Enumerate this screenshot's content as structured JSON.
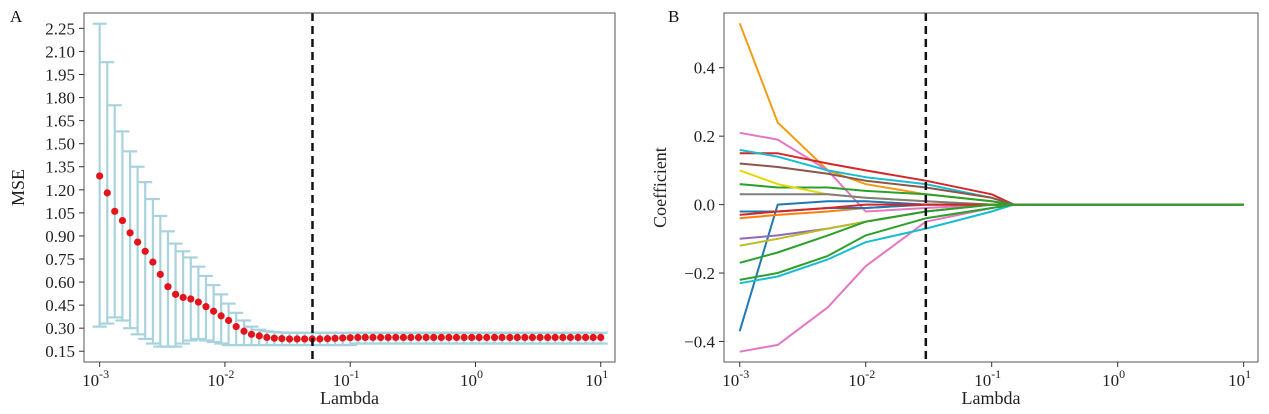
{
  "chart_data": [
    {
      "panel_label": "A",
      "type": "scatter",
      "xlabel": "Lambda",
      "ylabel": "MSE",
      "x_scale": "log",
      "xlim": [
        0.00075,
        13
      ],
      "ylim": [
        0.08,
        2.35
      ],
      "x_ticks": [
        0.001,
        0.01,
        0.1,
        1,
        10
      ],
      "x_tick_labels": [
        [
          "10",
          "-3"
        ],
        [
          "10",
          "-2"
        ],
        [
          "10",
          "-1"
        ],
        [
          "10",
          "0"
        ],
        [
          "10",
          "1"
        ]
      ],
      "y_ticks": [
        0.15,
        0.3,
        0.45,
        0.6,
        0.75,
        0.9,
        1.05,
        1.2,
        1.35,
        1.5,
        1.65,
        1.8,
        1.95,
        2.1,
        2.25
      ],
      "y_tick_labels": [
        "0.15",
        "0.30",
        "0.45",
        "0.60",
        "0.75",
        "0.90",
        "1.05",
        "1.20",
        "1.35",
        "1.50",
        "1.65",
        "1.80",
        "1.95",
        "2.10",
        "2.25"
      ],
      "vline_x": 0.05,
      "point_color": "#e3141c",
      "errorbar_color": "#a9d3dc",
      "series": [
        {
          "lambda": [
            0.001,
            0.00115,
            0.00132,
            0.00152,
            0.00175,
            0.00201,
            0.00231,
            0.00266,
            0.00305,
            0.00351,
            0.00404,
            0.00464,
            0.00534,
            0.00614,
            0.00706,
            0.00812,
            0.00933,
            0.0107,
            0.0123,
            0.0142,
            0.0163,
            0.0188,
            0.0216,
            0.0248,
            0.0285,
            0.0328,
            0.0377,
            0.0433,
            0.0498,
            0.0573,
            0.0659,
            0.0757,
            0.0871,
            0.1,
            0.115,
            0.132,
            0.152,
            0.175,
            0.201,
            0.231,
            0.266,
            0.305,
            0.351,
            0.404,
            0.464,
            0.534,
            0.614,
            0.706,
            0.812,
            0.933,
            1.07,
            1.23,
            1.42,
            1.63,
            1.88,
            2.16,
            2.48,
            2.85,
            3.28,
            3.77,
            4.33,
            4.98,
            5.73,
            6.59,
            7.57,
            8.71,
            10
          ],
          "mse": [
            1.29,
            1.18,
            1.06,
            1.0,
            0.92,
            0.86,
            0.8,
            0.73,
            0.65,
            0.57,
            0.52,
            0.5,
            0.49,
            0.47,
            0.44,
            0.41,
            0.38,
            0.35,
            0.31,
            0.28,
            0.26,
            0.25,
            0.24,
            0.235,
            0.232,
            0.23,
            0.23,
            0.23,
            0.23,
            0.23,
            0.232,
            0.234,
            0.236,
            0.238,
            0.24,
            0.24,
            0.24,
            0.24,
            0.24,
            0.24,
            0.24,
            0.24,
            0.24,
            0.24,
            0.24,
            0.24,
            0.24,
            0.24,
            0.24,
            0.24,
            0.24,
            0.24,
            0.24,
            0.24,
            0.24,
            0.24,
            0.24,
            0.24,
            0.24,
            0.24,
            0.24,
            0.24,
            0.24,
            0.24,
            0.24,
            0.24,
            0.24
          ],
          "upper": [
            2.28,
            2.03,
            1.75,
            1.58,
            1.45,
            1.35,
            1.25,
            1.14,
            1.03,
            0.93,
            0.85,
            0.8,
            0.76,
            0.7,
            0.64,
            0.58,
            0.52,
            0.46,
            0.4,
            0.35,
            0.31,
            0.29,
            0.28,
            0.275,
            0.272,
            0.27,
            0.27,
            0.27,
            0.27,
            0.27,
            0.27,
            0.27,
            0.27,
            0.27,
            0.27,
            0.27,
            0.27,
            0.27,
            0.27,
            0.27,
            0.27,
            0.27,
            0.27,
            0.27,
            0.27,
            0.27,
            0.27,
            0.27,
            0.27,
            0.27,
            0.27,
            0.27,
            0.27,
            0.27,
            0.27,
            0.27,
            0.27,
            0.27,
            0.27,
            0.27,
            0.27,
            0.27,
            0.27,
            0.27,
            0.27,
            0.27,
            0.27
          ],
          "lower": [
            0.31,
            0.33,
            0.37,
            0.35,
            0.3,
            0.26,
            0.23,
            0.2,
            0.18,
            0.18,
            0.18,
            0.2,
            0.22,
            0.23,
            0.22,
            0.21,
            0.2,
            0.19,
            0.19,
            0.19,
            0.19,
            0.19,
            0.19,
            0.19,
            0.19,
            0.19,
            0.19,
            0.19,
            0.19,
            0.19,
            0.19,
            0.19,
            0.19,
            0.19,
            0.2,
            0.2,
            0.2,
            0.2,
            0.2,
            0.2,
            0.2,
            0.2,
            0.2,
            0.2,
            0.2,
            0.2,
            0.2,
            0.2,
            0.2,
            0.2,
            0.2,
            0.2,
            0.2,
            0.2,
            0.2,
            0.2,
            0.2,
            0.2,
            0.2,
            0.2,
            0.2,
            0.2,
            0.2,
            0.2,
            0.2,
            0.2,
            0.2
          ]
        }
      ]
    },
    {
      "panel_label": "B",
      "type": "line",
      "xlabel": "Lambda",
      "ylabel": "Coefficient",
      "x_scale": "log",
      "xlim": [
        0.00075,
        13
      ],
      "ylim": [
        -0.46,
        0.56
      ],
      "x_ticks": [
        0.001,
        0.01,
        0.1,
        1,
        10
      ],
      "x_tick_labels": [
        [
          "10",
          "-3"
        ],
        [
          "10",
          "-2"
        ],
        [
          "10",
          "-1"
        ],
        [
          "10",
          "0"
        ],
        [
          "10",
          "1"
        ]
      ],
      "y_ticks": [
        -0.4,
        -0.2,
        0.0,
        0.2,
        0.4
      ],
      "y_tick_labels": [
        "−0.4",
        "−0.2",
        "0.0",
        "0.2",
        "0.4"
      ],
      "vline_x": 0.03,
      "x_knots": [
        0.001,
        0.002,
        0.005,
        0.01,
        0.03,
        0.1,
        0.15,
        10
      ],
      "series": [
        {
          "color": "#f39c12",
          "values": [
            0.53,
            0.24,
            0.1,
            0.06,
            0.03,
            0.01,
            0,
            0
          ]
        },
        {
          "color": "#e377c2",
          "values": [
            0.21,
            0.19,
            0.1,
            -0.02,
            -0.01,
            0,
            0,
            0
          ]
        },
        {
          "color": "#e377c2",
          "values": [
            -0.43,
            -0.41,
            -0.3,
            -0.18,
            -0.05,
            -0.01,
            0,
            0
          ]
        },
        {
          "color": "#d62728",
          "values": [
            0.15,
            0.15,
            0.12,
            0.1,
            0.07,
            0.03,
            0,
            0
          ]
        },
        {
          "color": "#17becf",
          "values": [
            0.16,
            0.14,
            0.1,
            0.08,
            0.06,
            0.02,
            0,
            0
          ]
        },
        {
          "color": "#8c564b",
          "values": [
            0.12,
            0.11,
            0.09,
            0.07,
            0.05,
            0.02,
            0,
            0
          ]
        },
        {
          "color": "#2ca02c",
          "values": [
            0.06,
            0.05,
            0.05,
            0.04,
            0.03,
            0.01,
            0,
            0
          ]
        },
        {
          "color": "#e5d800",
          "values": [
            0.1,
            0.06,
            0.03,
            0.02,
            0.01,
            0,
            0,
            0
          ]
        },
        {
          "color": "#1f77b4",
          "values": [
            -0.37,
            0.0,
            0.01,
            0.01,
            0,
            0,
            0,
            0
          ]
        },
        {
          "color": "#17becf",
          "values": [
            -0.23,
            -0.21,
            -0.16,
            -0.11,
            -0.07,
            -0.02,
            0,
            0
          ]
        },
        {
          "color": "#2ca02c",
          "values": [
            -0.22,
            -0.2,
            -0.15,
            -0.09,
            -0.04,
            -0.01,
            0,
            0
          ]
        },
        {
          "color": "#9467bd",
          "values": [
            -0.1,
            -0.09,
            -0.07,
            -0.05,
            -0.02,
            0,
            0,
            0
          ]
        },
        {
          "color": "#bcbd22",
          "values": [
            -0.12,
            -0.1,
            -0.07,
            -0.05,
            -0.02,
            0,
            0,
            0
          ]
        },
        {
          "color": "#7f7f7f",
          "values": [
            0.03,
            0.03,
            0.03,
            0.02,
            0.01,
            0,
            0,
            0
          ]
        },
        {
          "color": "#ff7f0e",
          "values": [
            -0.04,
            -0.03,
            -0.02,
            -0.01,
            0,
            0,
            0,
            0
          ]
        },
        {
          "color": "#1f77b4",
          "values": [
            -0.02,
            -0.02,
            -0.01,
            -0.01,
            0,
            0,
            0,
            0
          ]
        },
        {
          "color": "#d62728",
          "values": [
            -0.03,
            -0.02,
            -0.01,
            0,
            0,
            0,
            0,
            0
          ]
        },
        {
          "color": "#2ca02c",
          "values": [
            -0.17,
            -0.14,
            -0.09,
            -0.05,
            -0.02,
            0,
            0,
            0
          ]
        }
      ]
    }
  ]
}
